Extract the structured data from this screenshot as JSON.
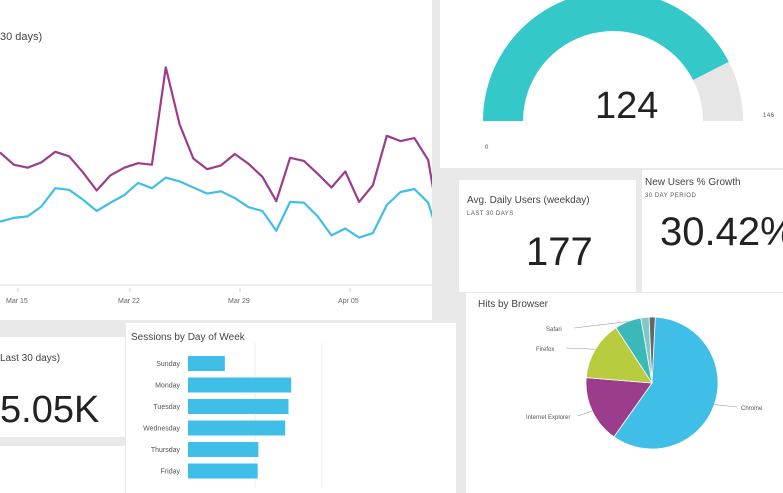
{
  "tiles": {
    "line": {
      "title_fragment": "30 days)"
    },
    "gauge": {
      "value": "124",
      "min_label": "0",
      "max_label": "146"
    },
    "avg_daily": {
      "title": "Avg. Daily Users (weekday)",
      "subtitle": "LAST 30 DAYS",
      "value": "177"
    },
    "new_users": {
      "title": "New Users % Growth",
      "subtitle": "30 DAY PERIOD",
      "value": "30.42%"
    },
    "last30": {
      "title_fragment": "Last 30 days)",
      "value": "5.05K"
    },
    "sessions": {
      "title": "Sessions by Day of Week"
    },
    "browser": {
      "title": "Hits by Browser"
    }
  },
  "colors": {
    "purple": "#9c3c8c",
    "blue": "#3fbfe8",
    "teal": "#34c8c8",
    "grey": "#e6e6e6",
    "bar": "#3fbfe8",
    "chrome": "#3fbfe8",
    "ie": "#9c3c8c",
    "firefox": "#b9cc3f",
    "safari": "#3bb8b8"
  },
  "chart_data": [
    {
      "type": "line",
      "x_ticks": [
        "Mar 15",
        "Mar 22",
        "Mar 29",
        "Apr 05"
      ],
      "series": [
        {
          "values": [
            148,
            132,
            128,
            135,
            149,
            143,
            122,
            98,
            118,
            128,
            134,
            132,
            260,
            185,
            140,
            126,
            131,
            146,
            133,
            116,
            84,
            141,
            137,
            120,
            102,
            123,
            83,
            105,
            170,
            163,
            167,
            138,
            32
          ]
        },
        {
          "values": [
            57,
            62,
            64,
            77,
            101,
            99,
            86,
            71,
            82,
            92,
            108,
            101,
            115,
            110,
            102,
            94,
            97,
            88,
            76,
            71,
            45,
            83,
            82,
            64,
            39,
            48,
            36,
            42,
            79,
            96,
            100,
            82,
            23
          ]
        }
      ]
    },
    {
      "type": "bar",
      "categories": [
        "Sunday",
        "Monday",
        "Tuesday",
        "Wednesday",
        "Thursday",
        "Friday"
      ],
      "values": [
        550,
        1540,
        1500,
        1450,
        1050,
        1040
      ],
      "x_tick": "2000",
      "xlim": [
        0,
        2000
      ]
    },
    {
      "type": "pie",
      "labels": [
        "Chrome",
        "Internet Explorer",
        "Firefox",
        "Safari",
        "",
        ""
      ],
      "values": [
        59,
        16.5,
        14.5,
        6.5,
        2,
        1.5
      ]
    }
  ]
}
